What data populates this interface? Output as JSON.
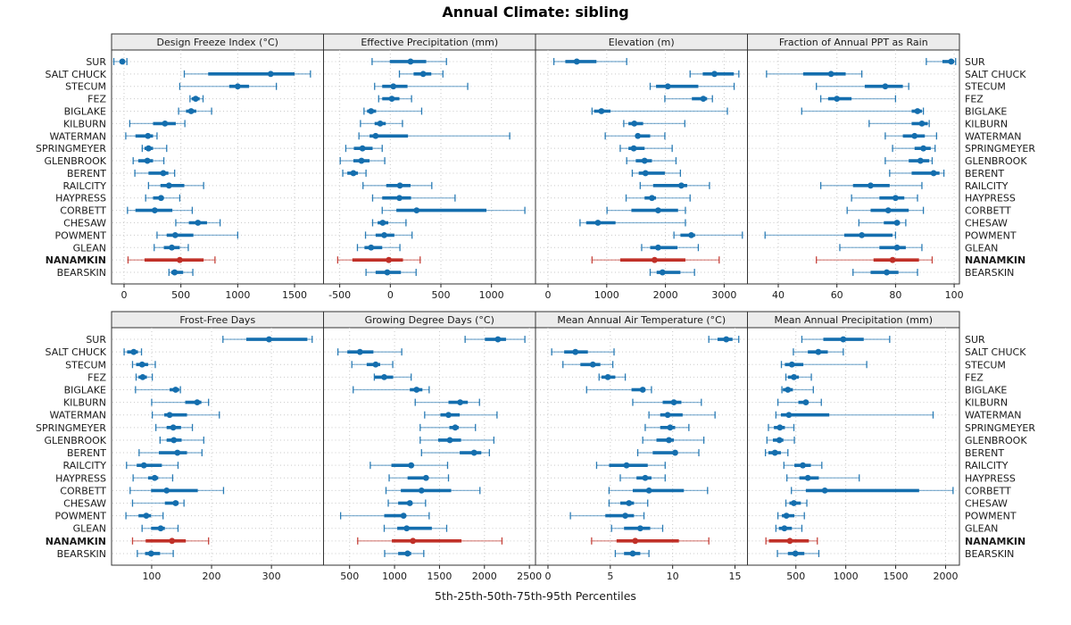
{
  "title": "Annual Climate: sibling",
  "caption": "5th-25th-50th-75th-95th Percentiles",
  "colors": {
    "normal": "#146eae",
    "highlight": "#c03028",
    "strip_bg": "#ececec",
    "panel_border": "#333333",
    "grid": "#c9c9c9",
    "tick_text": "#1a1a1a",
    "strip_text": "#1a1a1a"
  },
  "stations": [
    "SUR",
    "SALT CHUCK",
    "STECUM",
    "FEZ",
    "BIGLAKE",
    "KILBURN",
    "WATERMAN",
    "SPRINGMEYER",
    "GLENBROOK",
    "BERENT",
    "RAILCITY",
    "HAYPRESS",
    "CORBETT",
    "CHESAW",
    "POWMENT",
    "GLEAN",
    "NANAMKIN",
    "BEARSKIN"
  ],
  "highlight_station": "NANAMKIN",
  "chart_data": {
    "type": "percentile-dotplot",
    "percentiles": [
      5,
      25,
      50,
      75,
      95
    ],
    "note": "values[station_index] = [p5,p25,p50,p75,p95], station order as in stations[]",
    "panels": [
      {
        "title": "Design Freeze Index (°C)",
        "row": 0,
        "col": 0,
        "ticks": [
          0,
          500,
          1000,
          1500
        ],
        "domain": [
          -110,
          1755
        ],
        "values": [
          [
            -90,
            -40,
            -15,
            0,
            25
          ],
          [
            530,
            740,
            1290,
            1500,
            1640
          ],
          [
            490,
            925,
            1000,
            1100,
            1340
          ],
          [
            580,
            595,
            630,
            665,
            695
          ],
          [
            480,
            545,
            590,
            635,
            770
          ],
          [
            50,
            255,
            360,
            455,
            535
          ],
          [
            15,
            100,
            210,
            255,
            290
          ],
          [
            160,
            180,
            215,
            255,
            375
          ],
          [
            80,
            125,
            205,
            255,
            350
          ],
          [
            95,
            215,
            345,
            390,
            445
          ],
          [
            215,
            320,
            395,
            530,
            700
          ],
          [
            190,
            255,
            325,
            350,
            490
          ],
          [
            30,
            100,
            270,
            425,
            600
          ],
          [
            455,
            570,
            650,
            730,
            845
          ],
          [
            290,
            375,
            450,
            610,
            1000
          ],
          [
            265,
            350,
            420,
            490,
            565
          ],
          [
            35,
            180,
            490,
            700,
            800
          ],
          [
            395,
            415,
            445,
            520,
            605
          ]
        ]
      },
      {
        "title": "Effective Precipitation (mm)",
        "row": 0,
        "col": 1,
        "ticks": [
          -500,
          0,
          500,
          1000
        ],
        "domain": [
          -660,
          1435
        ],
        "values": [
          [
            -180,
            -5,
            200,
            355,
            555
          ],
          [
            90,
            230,
            325,
            405,
            520
          ],
          [
            -155,
            -80,
            30,
            170,
            765
          ],
          [
            -115,
            -80,
            15,
            90,
            210
          ],
          [
            -260,
            -230,
            -190,
            -140,
            310
          ],
          [
            -295,
            -155,
            -100,
            -45,
            120
          ],
          [
            -310,
            -205,
            -145,
            175,
            1180
          ],
          [
            -440,
            -360,
            -275,
            -175,
            -80
          ],
          [
            -495,
            -365,
            -285,
            -205,
            -55
          ],
          [
            -470,
            -425,
            -365,
            -320,
            -240
          ],
          [
            -270,
            -40,
            95,
            200,
            410
          ],
          [
            -175,
            -80,
            90,
            205,
            640
          ],
          [
            -80,
            60,
            260,
            950,
            1330
          ],
          [
            -175,
            -125,
            -75,
            -20,
            155
          ],
          [
            -245,
            -145,
            -60,
            40,
            215
          ],
          [
            -325,
            -255,
            -190,
            -80,
            95
          ],
          [
            -520,
            -375,
            -15,
            125,
            295
          ],
          [
            -240,
            -145,
            -30,
            105,
            255
          ]
        ]
      },
      {
        "title": "Elevation (m)",
        "row": 0,
        "col": 2,
        "ticks": [
          0,
          1000,
          2000,
          3000
        ],
        "domain": [
          -213,
          3397
        ],
        "values": [
          [
            100,
            295,
            490,
            825,
            1340
          ],
          [
            2420,
            2635,
            2835,
            3165,
            3250
          ],
          [
            1740,
            1840,
            2040,
            2560,
            3170
          ],
          [
            1990,
            2450,
            2645,
            2710,
            2800
          ],
          [
            750,
            785,
            910,
            1065,
            3055
          ],
          [
            1290,
            1370,
            1470,
            1620,
            2330
          ],
          [
            975,
            1495,
            1530,
            1740,
            1990
          ],
          [
            1230,
            1370,
            1460,
            1645,
            2115
          ],
          [
            1340,
            1495,
            1645,
            1770,
            2180
          ],
          [
            1435,
            1545,
            1660,
            1990,
            2255
          ],
          [
            1570,
            1790,
            2270,
            2370,
            2750
          ],
          [
            1330,
            1645,
            1770,
            1840,
            2420
          ],
          [
            1005,
            1420,
            1875,
            2215,
            2340
          ],
          [
            545,
            650,
            850,
            1150,
            2340
          ],
          [
            2145,
            2255,
            2440,
            2505,
            3310
          ],
          [
            1595,
            1740,
            1875,
            2205,
            2560
          ],
          [
            750,
            1230,
            1815,
            2340,
            2915
          ],
          [
            1740,
            1850,
            1950,
            2255,
            2495
          ]
        ]
      },
      {
        "title": "Fraction of Annual PPT as Rain",
        "row": 0,
        "col": 3,
        "ticks": [
          40,
          60,
          80,
          100
        ],
        "domain": [
          29.5,
          101.8
        ],
        "values": [
          [
            90.5,
            96,
            99,
            100,
            100.5
          ],
          [
            36,
            48.5,
            58,
            63,
            68.5
          ],
          [
            53,
            69.5,
            76.5,
            82.5,
            84.5
          ],
          [
            54.5,
            57,
            60,
            65,
            80
          ],
          [
            48,
            85.5,
            87.5,
            89,
            89.5
          ],
          [
            71,
            85.5,
            89,
            91,
            91.5
          ],
          [
            76.5,
            82.5,
            86.5,
            90,
            94
          ],
          [
            79,
            86.5,
            89.5,
            92,
            93.5
          ],
          [
            76.5,
            84.5,
            88.5,
            91.5,
            92.5
          ],
          [
            78,
            85.5,
            93,
            95,
            96.5
          ],
          [
            54.5,
            65.5,
            71.5,
            78,
            89
          ],
          [
            65,
            74.5,
            80,
            83,
            87.5
          ],
          [
            63.5,
            71.5,
            77.5,
            84.5,
            89.5
          ],
          [
            67.5,
            76,
            80.5,
            81.5,
            83.5
          ],
          [
            35.5,
            62.5,
            68.5,
            79,
            80
          ],
          [
            61,
            74.5,
            80.5,
            83.5,
            89
          ],
          [
            53,
            72.5,
            79,
            88,
            92.5
          ],
          [
            65.5,
            71.5,
            77,
            81,
            87.5
          ]
        ]
      },
      {
        "title": "Frost-Free Days",
        "row": 1,
        "col": 0,
        "ticks": [
          100,
          200,
          300
        ],
        "domain": [
          33,
          387
        ],
        "values": [
          [
            219,
            258,
            296,
            360,
            368
          ],
          [
            54,
            59,
            70,
            77,
            83
          ],
          [
            68,
            74,
            84,
            94,
            106
          ],
          [
            74,
            78,
            85,
            92,
            101
          ],
          [
            73,
            130,
            140,
            146,
            148
          ],
          [
            100,
            156,
            176,
            183,
            195
          ],
          [
            101,
            121,
            130,
            159,
            213
          ],
          [
            107,
            125,
            136,
            149,
            168
          ],
          [
            114,
            125,
            137,
            150,
            187
          ],
          [
            79,
            112,
            143,
            159,
            184
          ],
          [
            58,
            75,
            87,
            117,
            144
          ],
          [
            69,
            94,
            105,
            111,
            135
          ],
          [
            64,
            99,
            125,
            177,
            220
          ],
          [
            68,
            122,
            140,
            145,
            154
          ],
          [
            57,
            78,
            91,
            99,
            119
          ],
          [
            84,
            99,
            115,
            122,
            144
          ],
          [
            68,
            90,
            134,
            157,
            195
          ],
          [
            76,
            89,
            99,
            114,
            136
          ]
        ]
      },
      {
        "title": "Growing Degree Days (°C)",
        "row": 1,
        "col": 1,
        "ticks": [
          500,
          1000,
          1500,
          2000,
          2500
        ],
        "domain": [
          210,
          2568
        ],
        "values": [
          [
            1785,
            2005,
            2150,
            2240,
            2450
          ],
          [
            370,
            475,
            615,
            765,
            1080
          ],
          [
            525,
            690,
            790,
            840,
            980
          ],
          [
            775,
            780,
            885,
            985,
            1185
          ],
          [
            540,
            1170,
            1245,
            1310,
            1385
          ],
          [
            1230,
            1600,
            1730,
            1815,
            1945
          ],
          [
            1335,
            1510,
            1600,
            1725,
            2140
          ],
          [
            1285,
            1610,
            1675,
            1715,
            1900
          ],
          [
            1285,
            1485,
            1615,
            1740,
            2105
          ],
          [
            1300,
            1725,
            1885,
            1965,
            2055
          ],
          [
            730,
            965,
            1185,
            1210,
            1590
          ],
          [
            940,
            1145,
            1350,
            1370,
            1600
          ],
          [
            905,
            1070,
            1300,
            1630,
            1950
          ],
          [
            930,
            1040,
            1170,
            1185,
            1345
          ],
          [
            400,
            885,
            1100,
            1120,
            1385
          ],
          [
            885,
            1030,
            1135,
            1415,
            1580
          ],
          [
            590,
            970,
            1205,
            1745,
            2195
          ],
          [
            890,
            1040,
            1145,
            1185,
            1325
          ]
        ]
      },
      {
        "title": "Mean Annual Air Temperature (°C)",
        "row": 1,
        "col": 2,
        "ticks": [
          0,
          5,
          10,
          15
        ],
        "domain": [
          -1.0,
          16.0
        ],
        "values": [
          [
            12.9,
            13.6,
            14.3,
            14.8,
            15.3
          ],
          [
            0.3,
            1.3,
            2.2,
            3.2,
            5.3
          ],
          [
            1.2,
            2.6,
            3.6,
            4.2,
            5.2
          ],
          [
            4.1,
            4.3,
            4.8,
            5.4,
            6.2
          ],
          [
            3.1,
            6.7,
            7.6,
            7.8,
            8.3
          ],
          [
            6.8,
            9.2,
            10.1,
            10.7,
            12.3
          ],
          [
            8.1,
            9.0,
            9.6,
            10.8,
            13.4
          ],
          [
            7.8,
            9.0,
            9.8,
            10.2,
            11.3
          ],
          [
            7.6,
            8.7,
            9.7,
            10.1,
            12.5
          ],
          [
            7.2,
            8.4,
            10.2,
            10.4,
            12.1
          ],
          [
            3.9,
            4.9,
            6.3,
            8.0,
            9.4
          ],
          [
            5.8,
            7.1,
            7.8,
            8.3,
            9.4
          ],
          [
            4.9,
            6.8,
            8.1,
            10.9,
            12.8
          ],
          [
            4.9,
            5.8,
            6.5,
            6.9,
            8.0
          ],
          [
            1.8,
            4.6,
            6.2,
            6.9,
            7.7
          ],
          [
            5.1,
            6.1,
            7.4,
            8.2,
            9.2
          ],
          [
            3.5,
            5.5,
            7.0,
            10.5,
            12.9
          ],
          [
            5.4,
            6.1,
            6.8,
            7.4,
            8.1
          ]
        ]
      },
      {
        "title": "Mean Annual Precipitation (mm)",
        "row": 1,
        "col": 3,
        "ticks": [
          500,
          1000,
          1500,
          2000
        ],
        "domain": [
          15,
          2139
        ],
        "values": [
          [
            560,
            775,
            975,
            1180,
            1440
          ],
          [
            475,
            620,
            725,
            820,
            975
          ],
          [
            355,
            390,
            460,
            575,
            1210
          ],
          [
            400,
            420,
            480,
            530,
            655
          ],
          [
            360,
            370,
            420,
            470,
            675
          ],
          [
            320,
            525,
            600,
            625,
            755
          ],
          [
            300,
            350,
            430,
            835,
            1875
          ],
          [
            225,
            280,
            340,
            390,
            480
          ],
          [
            210,
            270,
            335,
            375,
            485
          ],
          [
            195,
            225,
            290,
            350,
            420
          ],
          [
            380,
            485,
            570,
            650,
            760
          ],
          [
            410,
            535,
            620,
            730,
            1135
          ],
          [
            455,
            600,
            790,
            1735,
            2075
          ],
          [
            400,
            435,
            480,
            550,
            610
          ],
          [
            320,
            360,
            405,
            485,
            585
          ],
          [
            300,
            330,
            385,
            460,
            560
          ],
          [
            200,
            230,
            440,
            630,
            715
          ],
          [
            315,
            420,
            495,
            585,
            730
          ]
        ]
      }
    ]
  }
}
